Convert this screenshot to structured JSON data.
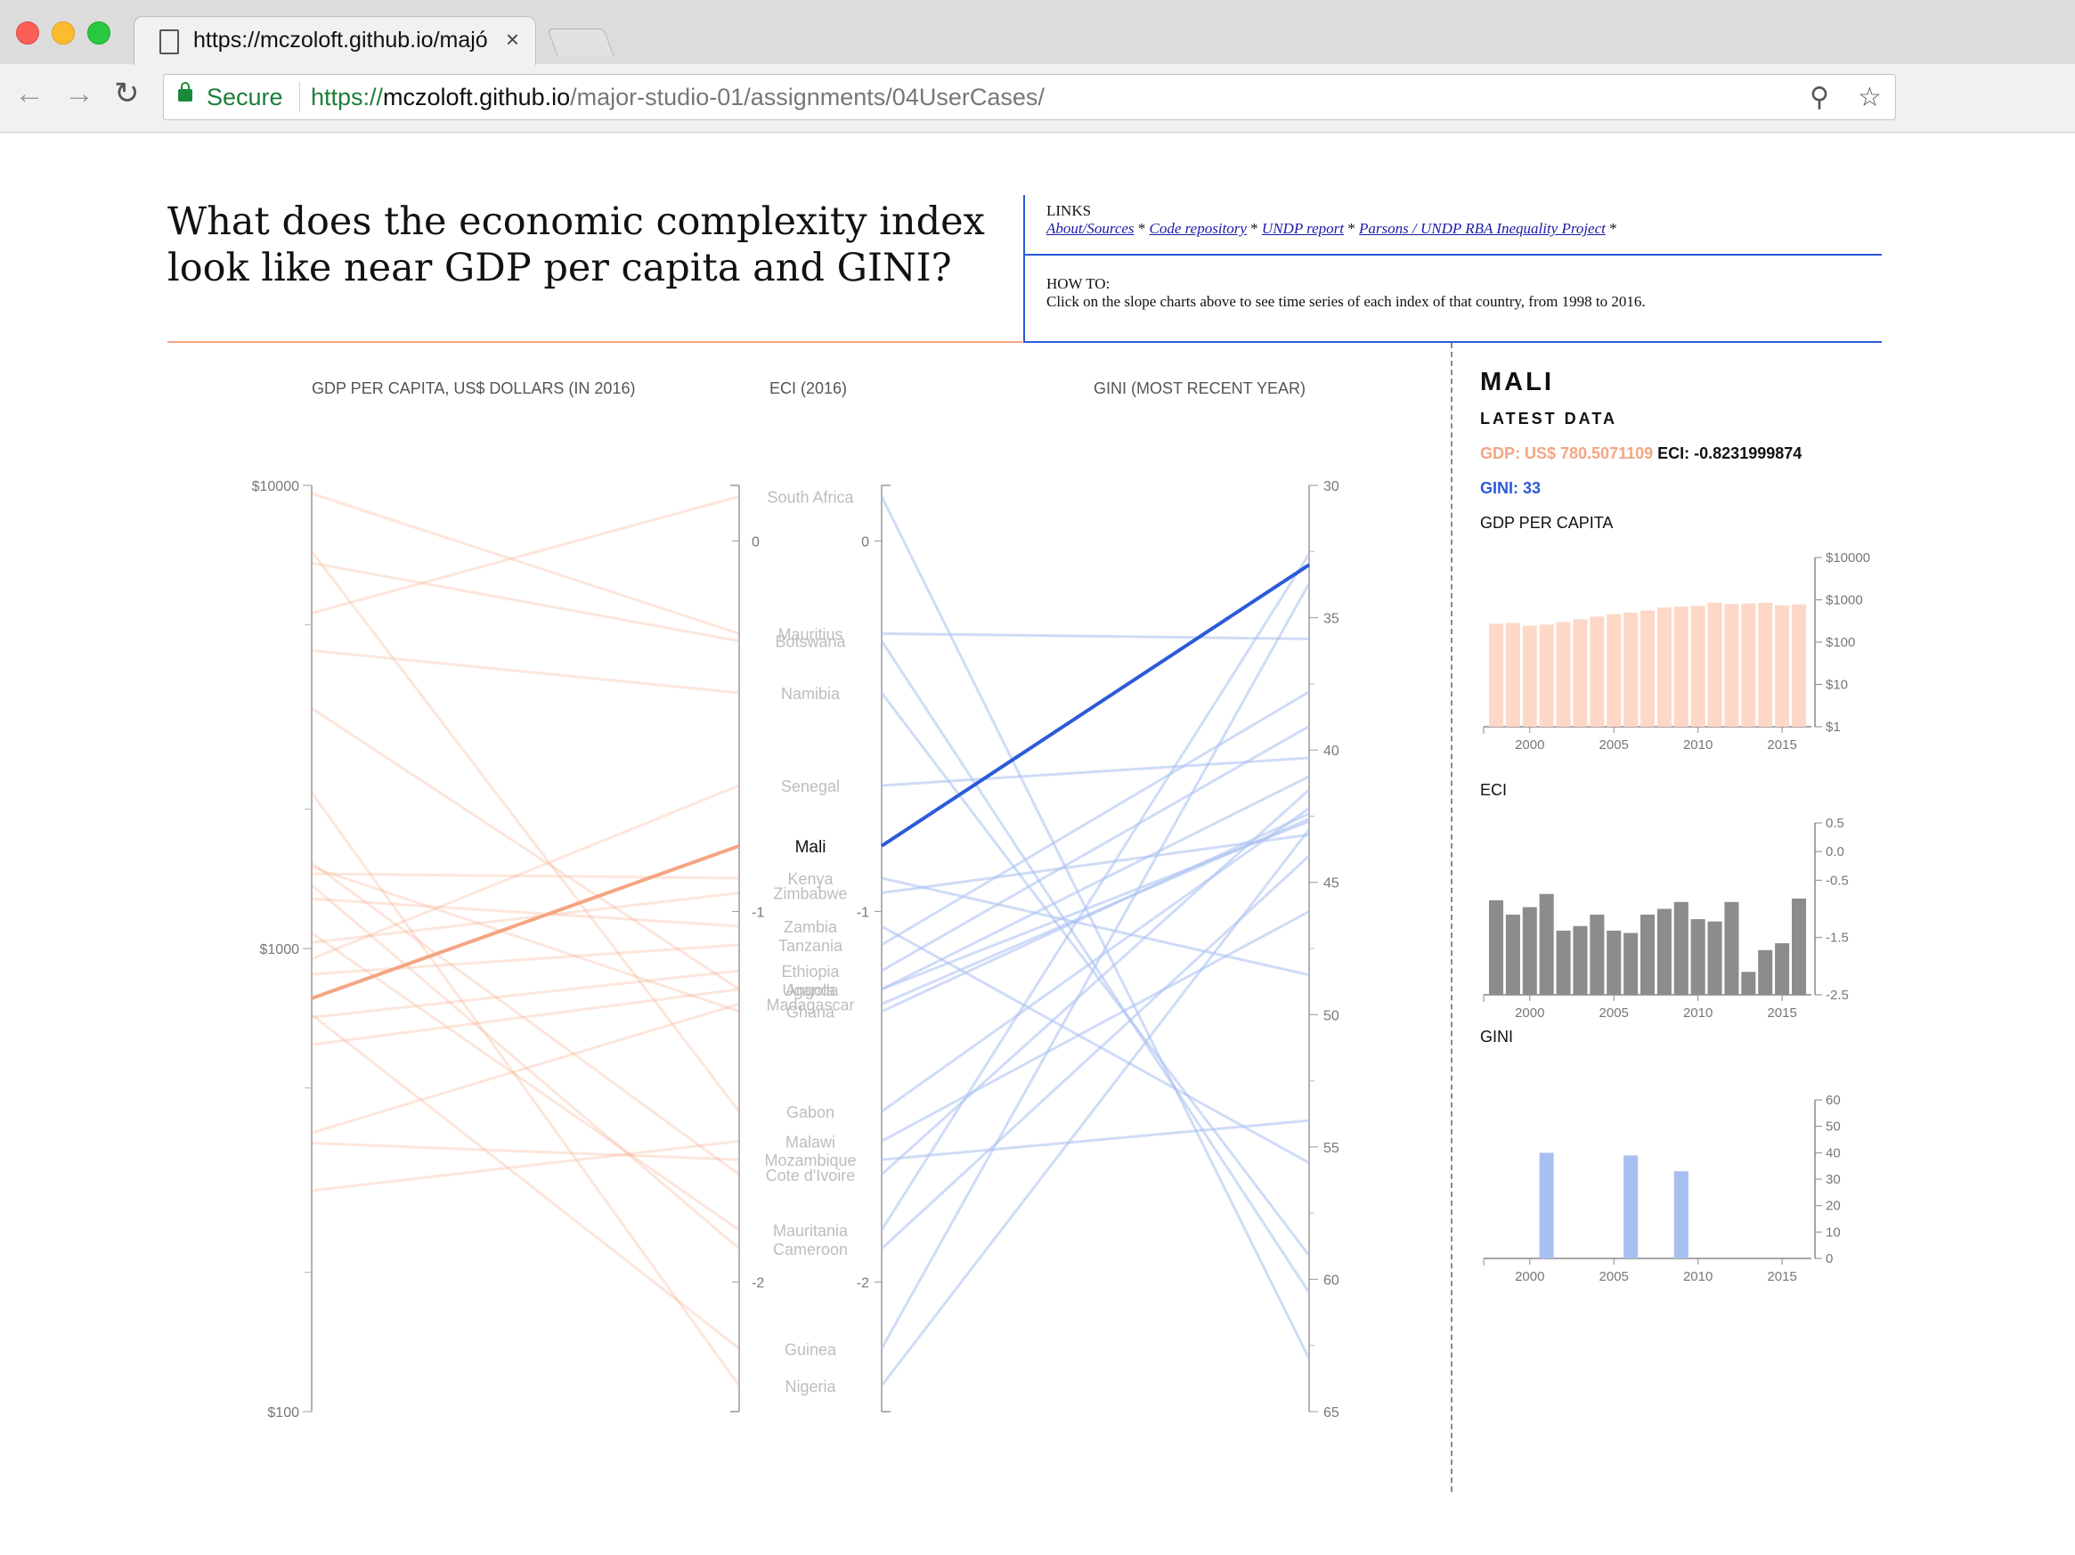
{
  "browser": {
    "tab_title": "https://mczoloft.github.io/majó",
    "tab_close": "×",
    "secure_label": "Secure",
    "url_protocol": "https://",
    "url_host": "mczoloft.github.io",
    "url_path": "/major-studio-01/assignments/04UserCases/",
    "icons": [
      "back-icon",
      "forward-icon",
      "reload-icon",
      "lock-icon",
      "zoom-icon",
      "star-icon"
    ]
  },
  "page": {
    "title": "What does the economic complexity index look like near GDP per capita and GINI?",
    "links_header": "LINKS",
    "links": [
      "About/Sources",
      "Code repository",
      "UNDP report",
      "Parsons / UNDP RBA Inequality Project"
    ],
    "link_sep": " * ",
    "howto_header": "HOW TO:",
    "howto_text": "Click on the slope charts above to see time series of each index of that country, from 1998 to 2016."
  },
  "colors": {
    "gdp": "#f4a582",
    "eci": "#888888",
    "gini": "#2b5bd8",
    "gini_light": "#a8c0f0",
    "accent_blue": "#2b5bd8"
  },
  "chart_data": [
    {
      "type": "line",
      "subtype": "slope",
      "headers": [
        "GDP PER CAPITA, US$ DOLLARS (IN 2016)",
        "ECI (2016)",
        "GINI (MOST RECENT YEAR)"
      ],
      "gdp_axis": {
        "scale": "log",
        "range": [
          100,
          10000
        ],
        "tick_labels": [
          "$10000",
          "$1000",
          "$100"
        ]
      },
      "eci_axis": {
        "range": [
          0.15,
          -2.35
        ],
        "tick_labels": [
          "0",
          "-1",
          "-2"
        ]
      },
      "gini_axis": {
        "range": [
          30,
          65
        ],
        "tick_labels": [
          "30",
          "35",
          "40",
          "45",
          "50",
          "55",
          "60",
          "65"
        ]
      },
      "highlighted": "Mali",
      "countries": [
        {
          "name": "South Africa",
          "gdp": 5300,
          "eci": 0.12,
          "gini": 63
        },
        {
          "name": "Mauritius",
          "gdp": 9600,
          "eci": -0.25,
          "gini": 35.8
        },
        {
          "name": "Botswana",
          "gdp": 6800,
          "eci": -0.27,
          "gini": 60.5
        },
        {
          "name": "Namibia",
          "gdp": 4400,
          "eci": -0.41,
          "gini": 59.1
        },
        {
          "name": "Senegal",
          "gdp": 950,
          "eci": -0.66,
          "gini": 40.3
        },
        {
          "name": "Mali",
          "gdp": 780.5071109,
          "eci": -0.8231999874,
          "gini": 33
        },
        {
          "name": "Kenya",
          "gdp": 1450,
          "eci": -0.91,
          "gini": 48.5
        },
        {
          "name": "Zimbabwe",
          "gdp": 1030,
          "eci": -0.95,
          "gini": 43.2
        },
        {
          "name": "Zambia",
          "gdp": 1280,
          "eci": -1.04,
          "gini": 55.6
        },
        {
          "name": "Tanzania",
          "gdp": 880,
          "eci": -1.09,
          "gini": 37.8
        },
        {
          "name": "Ethiopia",
          "gdp": 710,
          "eci": -1.16,
          "gini": 39.1
        },
        {
          "name": "Uganda",
          "gdp": 620,
          "eci": -1.21,
          "gini": 41.0
        },
        {
          "name": "Angola",
          "gdp": 3300,
          "eci": -1.21,
          "gini": 42.7
        },
        {
          "name": "Madagascar",
          "gdp": 400,
          "eci": -1.25,
          "gini": 42.6
        },
        {
          "name": "Ghana",
          "gdp": 1500,
          "eci": -1.27,
          "gini": 42.4
        },
        {
          "name": "Gabon",
          "gdp": 7200,
          "eci": -1.54,
          "gini": 42.2
        },
        {
          "name": "Malawi",
          "gdp": 300,
          "eci": -1.62,
          "gini": 46.1
        },
        {
          "name": "Mozambique",
          "gdp": 380,
          "eci": -1.67,
          "gini": 54.0
        },
        {
          "name": "Cote d'Ivoire",
          "gdp": 1530,
          "eci": -1.71,
          "gini": 41.5
        },
        {
          "name": "Mauritania",
          "gdp": 1080,
          "eci": -1.86,
          "gini": 32.6
        },
        {
          "name": "Cameroon",
          "gdp": 1370,
          "eci": -1.91,
          "gini": 44.0
        },
        {
          "name": "Guinea",
          "gdp": 720,
          "eci": -2.18,
          "gini": 33.7
        },
        {
          "name": "Nigeria",
          "gdp": 2170,
          "eci": -2.28,
          "gini": 43.0
        }
      ]
    },
    {
      "type": "bar",
      "title": "GDP PER CAPITA",
      "y_scale": "log",
      "ylim": [
        1,
        10000
      ],
      "y_tick_labels": [
        "$10000",
        "$1000",
        "$100",
        "$10",
        "$1"
      ],
      "x_tick_labels": [
        "2000",
        "2005",
        "2010",
        "2015"
      ],
      "x": [
        1998,
        1999,
        2000,
        2001,
        2002,
        2003,
        2004,
        2005,
        2006,
        2007,
        2008,
        2009,
        2010,
        2011,
        2012,
        2013,
        2014,
        2015,
        2016
      ],
      "values": [
        270,
        285,
        245,
        260,
        300,
        345,
        400,
        460,
        500,
        560,
        660,
        690,
        720,
        860,
        800,
        820,
        850,
        740,
        780
      ]
    },
    {
      "type": "bar",
      "title": "ECI",
      "ylim": [
        -2.5,
        0.5
      ],
      "y_tick_labels": [
        "0.5",
        "0.0",
        "-0.5",
        "-1.5",
        "-2.5"
      ],
      "x_tick_labels": [
        "2000",
        "2005",
        "2010",
        "2015"
      ],
      "x": [
        1998,
        1999,
        2000,
        2001,
        2002,
        2003,
        2004,
        2005,
        2006,
        2007,
        2008,
        2009,
        2010,
        2011,
        2012,
        2013,
        2014,
        2015,
        2016
      ],
      "values": [
        -0.85,
        -1.1,
        -0.97,
        -0.74,
        -1.38,
        -1.3,
        -1.1,
        -1.38,
        -1.42,
        -1.1,
        -1.0,
        -0.88,
        -1.18,
        -1.22,
        -0.88,
        -2.1,
        -1.72,
        -1.6,
        -0.82
      ]
    },
    {
      "type": "bar",
      "title": "GINI",
      "ylim": [
        0,
        60
      ],
      "y_tick_labels": [
        "60",
        "50",
        "40",
        "30",
        "20",
        "10",
        "0"
      ],
      "x_tick_labels": [
        "2000",
        "2005",
        "2010",
        "2015"
      ],
      "x": [
        2001,
        2006,
        2009
      ],
      "values": [
        40,
        39,
        33
      ]
    }
  ],
  "side": {
    "country": "MALI",
    "latest_label": "LATEST DATA",
    "gdp_text": "GDP: US$ 780.5071109",
    "eci_text": "ECI: -0.8231999874",
    "gini_text": "GINI: 33",
    "gdp_title": "GDP PER CAPITA",
    "eci_title": "ECI",
    "gini_title": "GINI"
  }
}
